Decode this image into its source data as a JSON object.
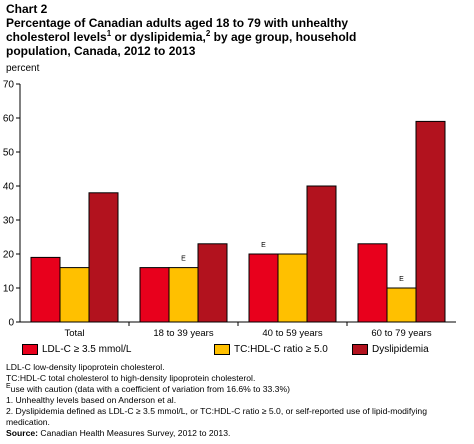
{
  "header": {
    "chart_label": "Chart 2",
    "title_line1": "Percentage of Canadian adults aged 18 to 79 with unhealthy",
    "title_line2a": "cholesterol levels",
    "title_sup1": "1",
    "title_line2b": " or dyslipidemia,",
    "title_sup2": "2",
    "title_line2c": " by age group, household",
    "title_line3": "population, Canada, 2012 to 2013"
  },
  "unit_label": "percent",
  "colors": {
    "ldl": "#e8001c",
    "tc_hdl": "#ffc000",
    "dyslipidemia": "#b2121e",
    "axis": "#000000"
  },
  "chart_data": {
    "type": "bar",
    "categories": [
      "Total",
      "18 to 39 years",
      "40 to 59 years",
      "60 to 79 years"
    ],
    "series": [
      {
        "name": "LDL-C ≥ 3.5 mmol/L",
        "values": [
          19,
          16,
          20,
          23
        ],
        "flags": [
          "",
          "",
          "E",
          ""
        ]
      },
      {
        "name": "TC:HDL-C ratio ≥ 5.0",
        "values": [
          16,
          16,
          20,
          10
        ],
        "flags": [
          "",
          "E",
          "",
          "E"
        ]
      },
      {
        "name": "Dyslipidemia",
        "values": [
          38,
          23,
          40,
          59
        ],
        "flags": [
          "",
          "",
          "",
          ""
        ]
      }
    ],
    "ylabel": "percent",
    "ylim": [
      0,
      70
    ],
    "yticks": [
      0,
      10,
      20,
      30,
      40,
      50,
      60,
      70
    ],
    "grid": false,
    "legend_position": "bottom"
  },
  "legend": {
    "ldl_label": "LDL-C ≥ 3.5 mmol/L",
    "tc_label": "TC:HDL-C ratio ≥ 5.0",
    "dys_label": "Dyslipidemia"
  },
  "notes": {
    "ldl_def": "LDL-C low-density lipoprotein cholesterol.",
    "tc_def": "TC:HDL-C total cholesterol to high-density lipoprotein cholesterol.",
    "e_sup": "E",
    "e_text": "use with caution (data with a coefficient of variation from 16.6% to 33.3%)",
    "note1": "1. Unhealthy levels based on Anderson et al.",
    "note2": "2. Dyslipidemia defined as LDL-C  ≥ 3.5 mmol/L, or TC:HDL-C ratio  ≥ 5.0, or self-reported use of lipid-modifying medication.",
    "source_label": "Source:",
    "source_text": " Canadian Health Measures Survey, 2012 to 2013."
  }
}
